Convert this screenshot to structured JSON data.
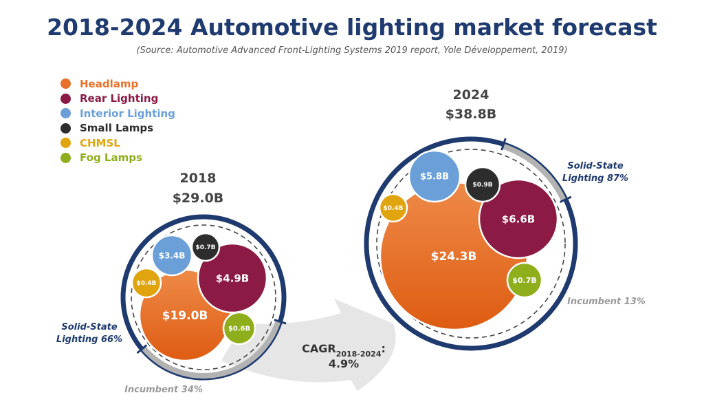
{
  "title": "2018-2024 Automotive lighting market forecast",
  "subtitle": "(Source: Automotive Advanced Front-Lighting Systems 2019 report, Yole Développement, 2019)",
  "colors": {
    "title": "#1e3a6e",
    "ring": "#1e3a6e",
    "incumbent_arc": "#b3b3b3",
    "text_gray": "#555555"
  },
  "legend": [
    {
      "label": "Headlamp",
      "color": "#e8722c"
    },
    {
      "label": "Rear Lighting",
      "color": "#8b1a44"
    },
    {
      "label": "Interior Lighting",
      "color": "#6a9fd8"
    },
    {
      "label": "Small Lamps",
      "color": "#2d2d2d"
    },
    {
      "label": "CHMSL",
      "color": "#e0a40e"
    },
    {
      "label": "Fog Lamps",
      "color": "#8fae1b"
    }
  ],
  "chart_data": [
    {
      "type": "bubble",
      "year": "2018",
      "total": "$29.0B",
      "series": [
        {
          "name": "Headlamp",
          "value": 19.0,
          "label": "$19.0B"
        },
        {
          "name": "Rear Lighting",
          "value": 4.9,
          "label": "$4.9B"
        },
        {
          "name": "Interior Lighting",
          "value": 3.4,
          "label": "$3.4B"
        },
        {
          "name": "Small Lamps",
          "value": 0.7,
          "label": "$0.7B"
        },
        {
          "name": "CHMSL",
          "value": 0.4,
          "label": "$0.4B"
        },
        {
          "name": "Fog Lamps",
          "value": 0.6,
          "label": "$0.6B"
        }
      ],
      "solid_state_label": [
        "Solid-State",
        "Lighting 66%"
      ],
      "solid_state_share": 66,
      "incumbent_label": "Incumbent 34%",
      "incumbent_share": 34
    },
    {
      "type": "bubble",
      "year": "2024",
      "total": "$38.8B",
      "series": [
        {
          "name": "Headlamp",
          "value": 24.3,
          "label": "$24.3B"
        },
        {
          "name": "Rear Lighting",
          "value": 6.6,
          "label": "$6.6B"
        },
        {
          "name": "Interior Lighting",
          "value": 5.8,
          "label": "$5.8B"
        },
        {
          "name": "Small Lamps",
          "value": 0.9,
          "label": "$0.9B"
        },
        {
          "name": "CHMSL",
          "value": 0.4,
          "label": "$0.4B"
        },
        {
          "name": "Fog Lamps",
          "value": 0.7,
          "label": "$0.7B"
        }
      ],
      "solid_state_label": [
        "Solid-State",
        "Lighting 87%"
      ],
      "solid_state_share": 87,
      "incumbent_label": "Incumbent 13%",
      "incumbent_share": 13
    }
  ],
  "cagr": {
    "label": "CAGR",
    "subscript": "2018-2024",
    "suffix": ":",
    "value": "4.9%"
  }
}
